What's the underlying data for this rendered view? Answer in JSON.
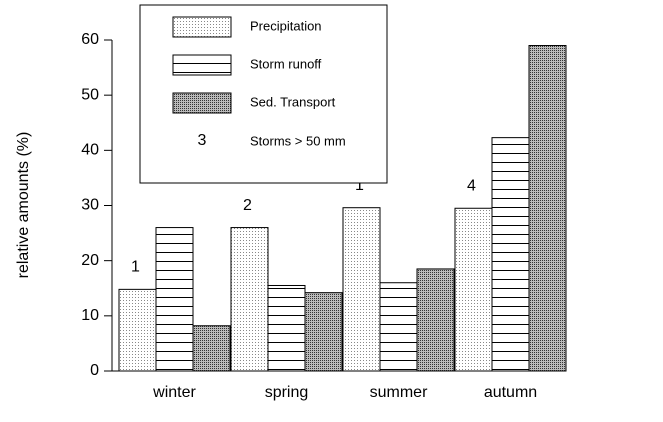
{
  "chart_data": {
    "type": "bar",
    "y_label": "relative amounts (%)",
    "categories": [
      "winter",
      "spring",
      "summer",
      "autumn"
    ],
    "series": [
      {
        "name": "Precipitation",
        "pattern": "dots",
        "values": [
          14.8,
          26,
          29.6,
          29.5
        ]
      },
      {
        "name": "Storm runoff",
        "pattern": "hlines",
        "values": [
          26,
          15.5,
          16,
          42.3
        ]
      },
      {
        "name": "Sed. Transport",
        "pattern": "dense-dots",
        "values": [
          8.2,
          14.2,
          18.5,
          59
        ]
      }
    ],
    "storm_counts": [
      1,
      2,
      1,
      4
    ],
    "legend_note": {
      "symbol": "3",
      "label": "Storms > 50 mm"
    },
    "ylim": [
      0,
      60
    ],
    "yticks": [
      0,
      10,
      20,
      30,
      40,
      50,
      60
    ],
    "grid": false
  }
}
